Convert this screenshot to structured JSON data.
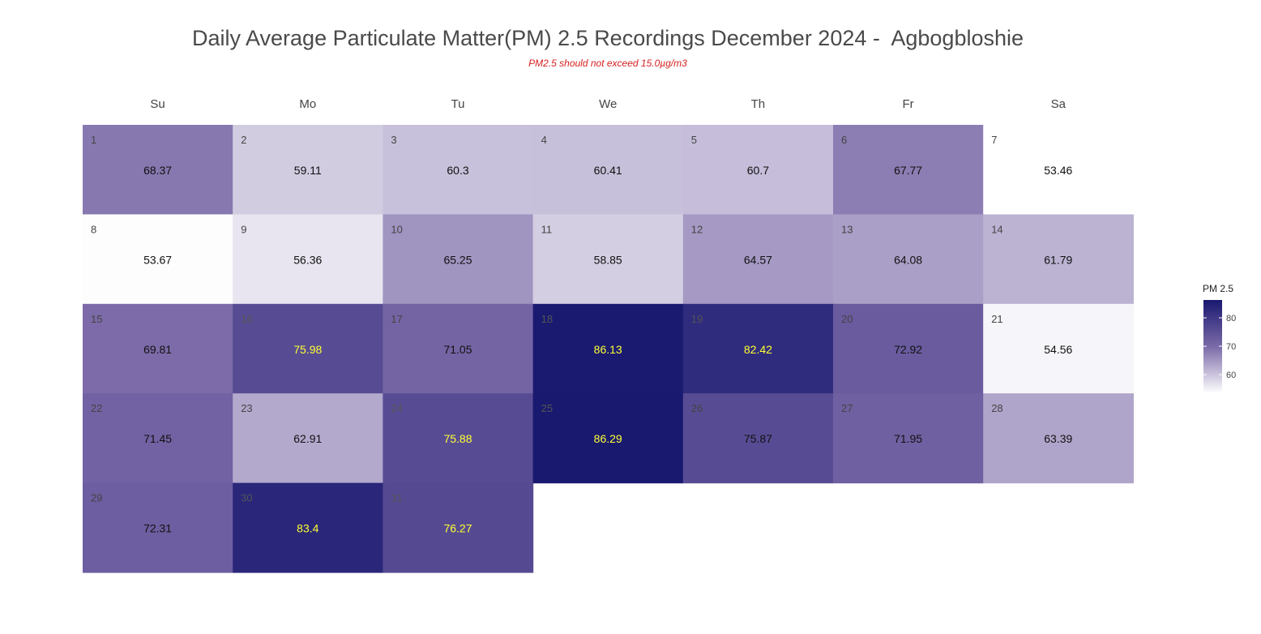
{
  "chart_data": {
    "type": "heatmap",
    "title": "Daily Average Particulate Matter(PM) 2.5 Recordings December 2024 -  Agbogbloshie",
    "subtitle": "PM2.5 should not exceed 15.0µg/m3",
    "weekdays": [
      "Su",
      "Mo",
      "Tu",
      "We",
      "Th",
      "Fr",
      "Sa"
    ],
    "first_weekday_index": 0,
    "days": [
      1,
      2,
      3,
      4,
      5,
      6,
      7,
      8,
      9,
      10,
      11,
      12,
      13,
      14,
      15,
      16,
      17,
      18,
      19,
      20,
      21,
      22,
      23,
      24,
      25,
      26,
      27,
      28,
      29,
      30,
      31
    ],
    "values": [
      68.37,
      59.11,
      60.3,
      60.41,
      60.7,
      67.77,
      53.46,
      53.67,
      56.36,
      65.25,
      58.85,
      64.57,
      64.08,
      61.79,
      69.81,
      75.98,
      71.05,
      86.13,
      82.42,
      72.92,
      54.56,
      71.45,
      62.91,
      75.88,
      86.29,
      75.87,
      71.95,
      63.39,
      72.31,
      83.4,
      76.27
    ],
    "value_labels": [
      "68.37",
      "59.11",
      "60.3",
      "60.41",
      "60.7",
      "67.77",
      "53.46",
      "53.67",
      "56.36",
      "65.25",
      "58.85",
      "64.57",
      "64.08",
      "61.79",
      "69.81",
      "75.98",
      "71.05",
      "86.13",
      "82.42",
      "72.92",
      "54.56",
      "71.45",
      "62.91",
      "75.88",
      "86.29",
      "75.87",
      "71.95",
      "63.39",
      "72.31",
      "83.4",
      "76.27"
    ],
    "highlight_threshold": 75.88,
    "color_scale": {
      "min": 53.46,
      "max": 86.29,
      "low_color": "#ffffff",
      "mid_color": "#7b6aa8",
      "high_color": "#191970"
    },
    "label_color_normal": "#111111",
    "label_color_high": "#ffff33",
    "legend": {
      "title": "PM 2.5",
      "ticks": [
        60,
        70,
        80
      ],
      "placement": "right"
    }
  }
}
